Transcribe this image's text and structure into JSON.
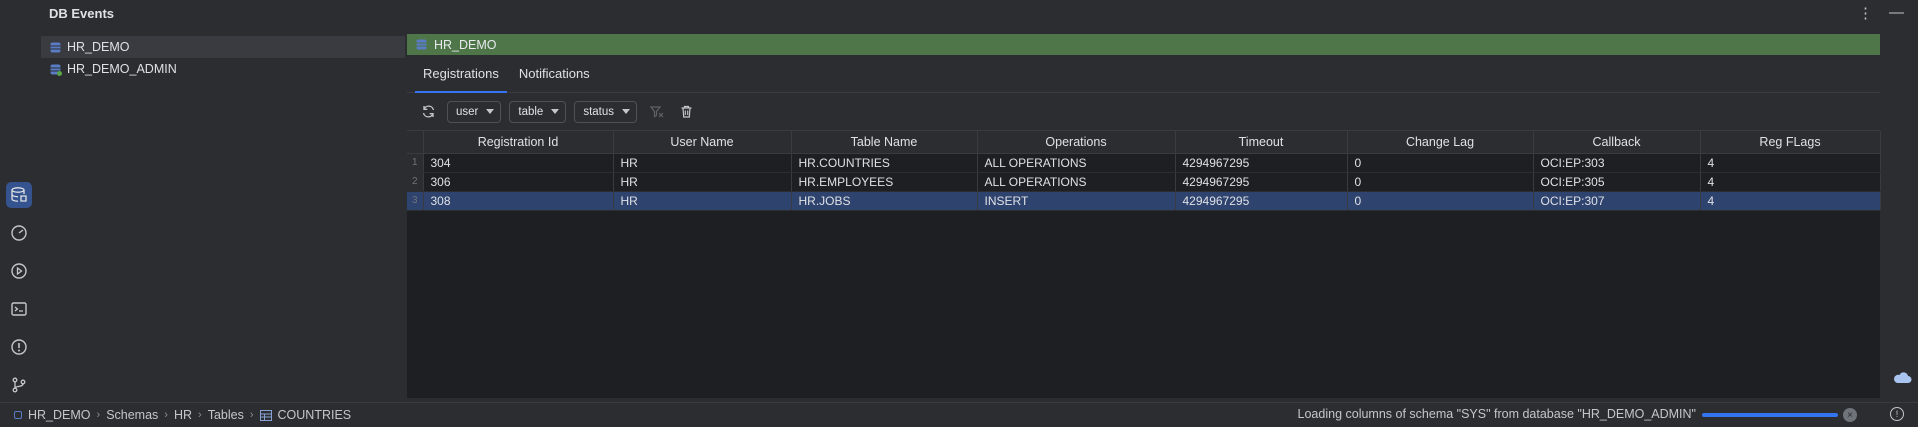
{
  "panel": {
    "title": "DB Events"
  },
  "title_actions": {
    "more": "⋮",
    "minimize": "—"
  },
  "toolstrip": [
    {
      "name": "db-events-tool-button",
      "icon": "database-events-icon",
      "active": true
    },
    {
      "name": "performance-tool-button",
      "icon": "gauge-icon",
      "active": false
    },
    {
      "name": "run-tool-button",
      "icon": "run-icon",
      "active": false
    },
    {
      "name": "terminal-tool-button",
      "icon": "terminal-icon",
      "active": false
    },
    {
      "name": "problems-tool-button",
      "icon": "problems-icon",
      "active": false
    },
    {
      "name": "git-tool-button",
      "icon": "git-branch-icon",
      "active": false
    }
  ],
  "tree": {
    "items": [
      {
        "label": "HR_DEMO",
        "selected": true,
        "connected": false
      },
      {
        "label": "HR_DEMO_ADMIN",
        "selected": false,
        "connected": true
      }
    ]
  },
  "connection": {
    "name": "HR_DEMO",
    "color": "#4e7649"
  },
  "tabs": [
    {
      "label": "Registrations",
      "active": true
    },
    {
      "label": "Notifications",
      "active": false
    }
  ],
  "filters": {
    "user": "user",
    "table": "table",
    "status": "status"
  },
  "table": {
    "columns": [
      "Registration Id",
      "User Name",
      "Table Name",
      "Operations",
      "Timeout",
      "Change Lag",
      "Callback",
      "Reg FLags"
    ],
    "rows": [
      {
        "num": "1",
        "cells": [
          "304",
          "HR",
          "HR.COUNTRIES",
          "ALL OPERATIONS",
          "4294967295",
          "0",
          "OCI:EP:303",
          "4"
        ]
      },
      {
        "num": "2",
        "cells": [
          "306",
          "HR",
          "HR.EMPLOYEES",
          "ALL OPERATIONS",
          "4294967295",
          "0",
          "OCI:EP:305",
          "4"
        ]
      },
      {
        "num": "3",
        "cells": [
          "308",
          "HR",
          "HR.JOBS",
          "INSERT",
          "4294967295",
          "0",
          "OCI:EP:307",
          "4"
        ]
      }
    ],
    "selected_row": 2
  },
  "statusbar": {
    "breadcrumbs": [
      "HR_DEMO",
      "Schemas",
      "HR",
      "Tables",
      "COUNTRIES"
    ],
    "message": "Loading columns of schema \"SYS\" from database \"HR_DEMO_ADMIN\"",
    "cancel": "×",
    "help": "!"
  },
  "colors": {
    "accent": "#3574f0",
    "selection": "#2e436e",
    "connection": "#4e7649"
  }
}
